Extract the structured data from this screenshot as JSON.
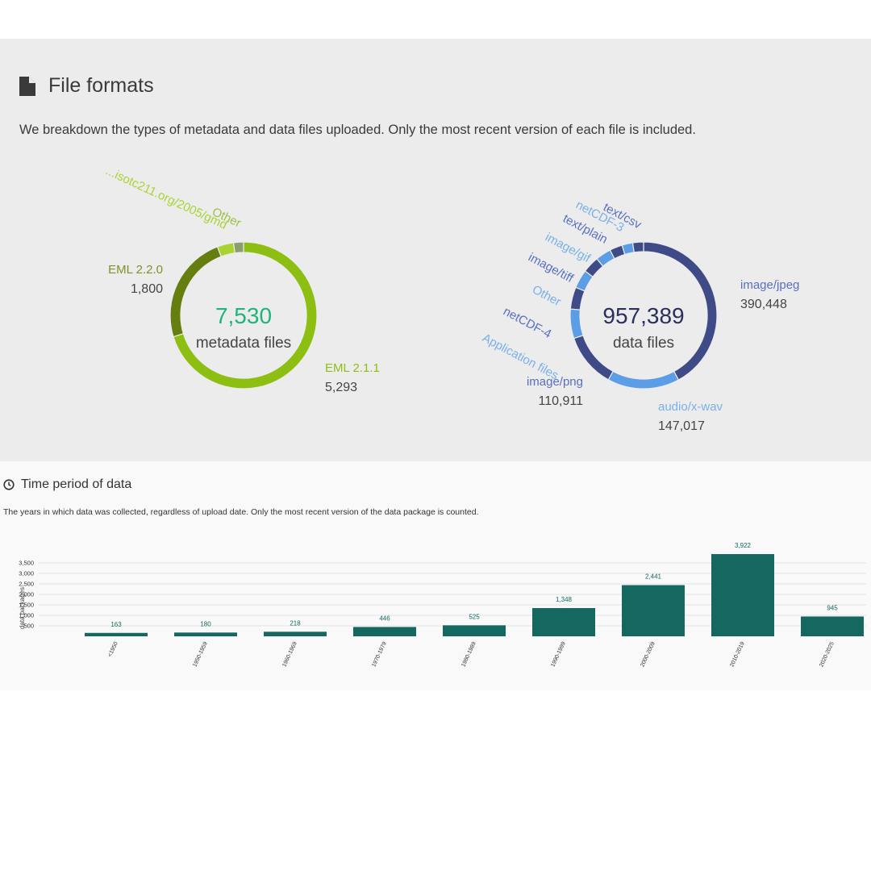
{
  "file_formats": {
    "title": "File formats",
    "description": "We breakdown the types of metadata and data files uploaded. Only the most recent version of each file is included."
  },
  "time_period": {
    "title": "Time period of data",
    "description": "The years in which data was collected, regardless of upload date. Only the most recent version of the data package is counted."
  },
  "chart_data": [
    {
      "type": "pie",
      "variant": "donut",
      "center_value": "7,530",
      "center_label": "metadata files",
      "center_color": "#1fb47a",
      "slices": [
        {
          "label": "EML 2.1.1",
          "value": 5293,
          "value_text": "5,293",
          "color": "#8dbf12",
          "label_color": "#8dbf12"
        },
        {
          "label": "EML 2.2.0",
          "value": 1800,
          "value_text": "1,800",
          "color": "#667d10",
          "label_color": "#7d9327"
        },
        {
          "label": "...isotc211.org/2005/gmd",
          "value": 272,
          "value_text": "",
          "color": "#a8d432",
          "label_color": "#a8d432"
        },
        {
          "label": "Other",
          "value": 165,
          "value_text": "",
          "color": "#8aa06a",
          "label_color": "#9fc142"
        }
      ]
    },
    {
      "type": "pie",
      "variant": "donut",
      "center_value": "957,389",
      "center_label": "data files",
      "center_color": "#2a2f5c",
      "slices": [
        {
          "label": "image/jpeg",
          "value": 390448,
          "value_text": "390,448",
          "color": "#3f4b86",
          "label_color": "#5a6fbf"
        },
        {
          "label": "audio/x-wav",
          "value": 147017,
          "value_text": "147,017",
          "color": "#5b9ee6",
          "label_color": "#7ab0ea"
        },
        {
          "label": "image/png",
          "value": 110911,
          "value_text": "110,911",
          "color": "#3f4b86",
          "label_color": "#5a6fbf"
        },
        {
          "label": "Application files",
          "value": 60000,
          "value_text": "",
          "color": "#5b9ee6",
          "label_color": "#7ab0ea"
        },
        {
          "label": "netCDF-4",
          "value": 45000,
          "value_text": "",
          "color": "#3f4b86",
          "label_color": "#5a6fbf"
        },
        {
          "label": "Other",
          "value": 38000,
          "value_text": "",
          "color": "#5b9ee6",
          "label_color": "#7ab0ea"
        },
        {
          "label": "image/tiff",
          "value": 34000,
          "value_text": "",
          "color": "#3f4b86",
          "label_color": "#5a6fbf"
        },
        {
          "label": "image/gif",
          "value": 32000,
          "value_text": "",
          "color": "#5b9ee6",
          "label_color": "#7ab0ea"
        },
        {
          "label": "text/plain",
          "value": 26000,
          "value_text": "",
          "color": "#3f4b86",
          "label_color": "#5a6fbf"
        },
        {
          "label": "netCDF-3",
          "value": 22000,
          "value_text": "",
          "color": "#5b9ee6",
          "label_color": "#7ab0ea"
        },
        {
          "label": "text/csv",
          "value": 22000,
          "value_text": "",
          "color": "#3f4b86",
          "label_color": "#5a6fbf"
        }
      ]
    },
    {
      "type": "bar",
      "categories": [
        "<1950",
        "1950-1959",
        "1960-1969",
        "1970-1979",
        "1980-1989",
        "1990-1999",
        "2000-2009",
        "2010-2019",
        "2020-2025"
      ],
      "values": [
        163,
        180,
        218,
        446,
        525,
        1348,
        2441,
        3922,
        945
      ],
      "value_labels": [
        "163",
        "180",
        "218",
        "446",
        "525",
        "1,348",
        "2,441",
        "3,922",
        "945"
      ],
      "ylabel": "data packages",
      "yticks": [
        500,
        1000,
        1500,
        2000,
        2500,
        3000,
        3500
      ],
      "ytick_labels": [
        "500",
        "1,000",
        "1,500",
        "2,000",
        "2,500",
        "3,000",
        "3,500"
      ],
      "ylim": [
        0,
        3500
      ],
      "bar_color": "#146860",
      "grid": true
    }
  ]
}
